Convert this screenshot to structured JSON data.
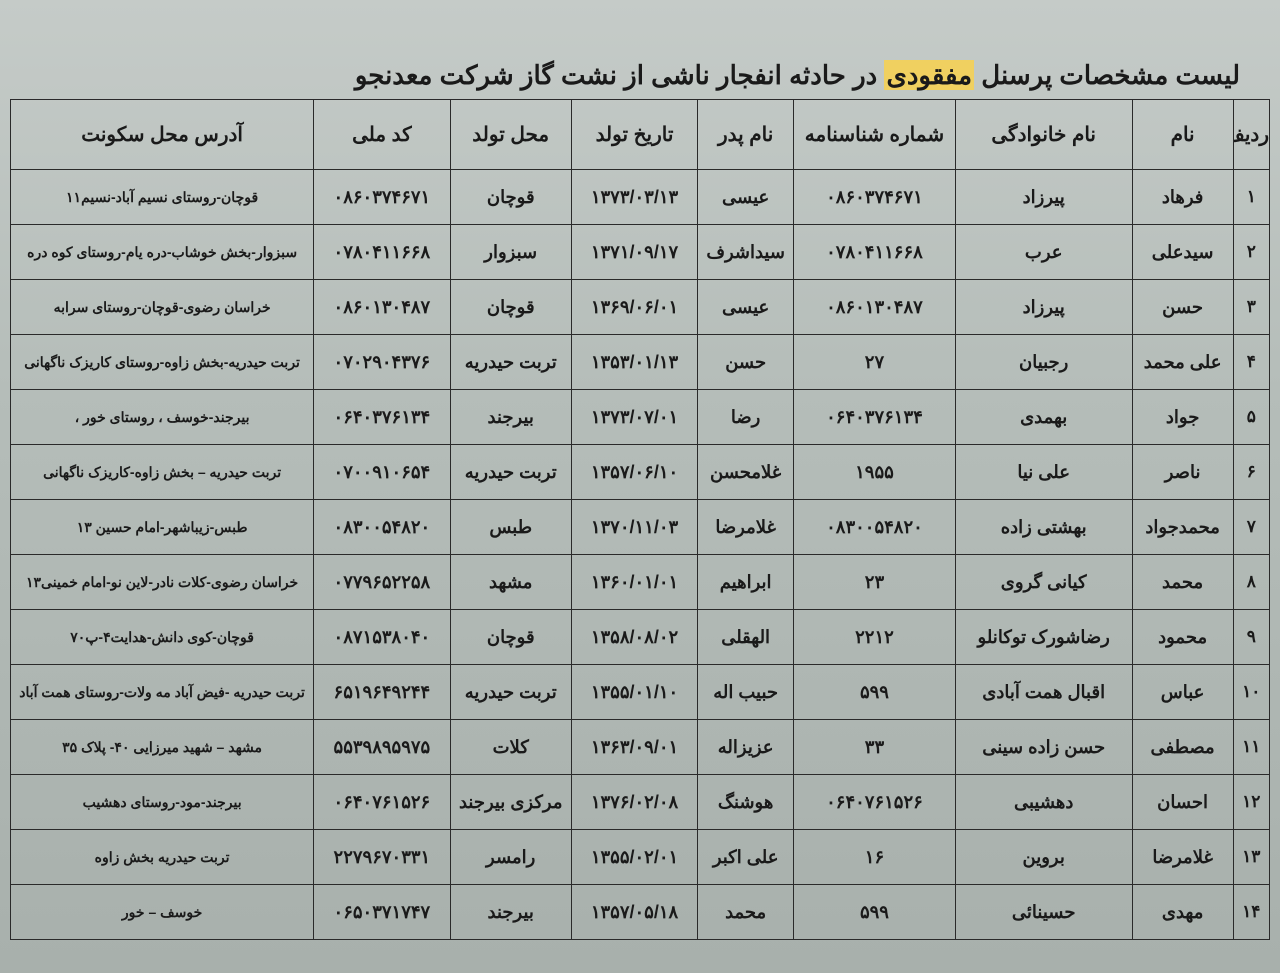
{
  "title_prefix": "لیست مشخصات پرسنل",
  "title_highlight": "مفقودی",
  "title_suffix": "در حادثه انفجار ناشی از نشت گاز شرکت معدنجو",
  "headers": {
    "row": "ردیف",
    "name": "نام",
    "lname": "نام خانوادگی",
    "id": "شماره شناسنامه",
    "father": "نام پدر",
    "dob": "تاریخ تولد",
    "pob": "محل تولد",
    "nid": "کد ملی",
    "addr": "آدرس محل سکونت"
  },
  "rows": [
    {
      "n": "۱",
      "name": "فرهاد",
      "lname": "پیرزاد",
      "id": "۰۸۶۰۳۷۴۶۷۱",
      "father": "عیسی",
      "dob": "۱۳۷۳/۰۳/۱۳",
      "pob": "قوچان",
      "nid": "۰۸۶۰۳۷۴۶۷۱",
      "addr": "قوچان-روستای نسیم آباد-نسیم۱۱"
    },
    {
      "n": "۲",
      "name": "سیدعلی",
      "lname": "عرب",
      "id": "۰۷۸۰۴۱۱۶۶۸",
      "father": "سیداشرف",
      "dob": "۱۳۷۱/۰۹/۱۷",
      "pob": "سبزوار",
      "nid": "۰۷۸۰۴۱۱۶۶۸",
      "addr": "سبزوار-بخش خوشاب-دره یام-روستای کوه دره"
    },
    {
      "n": "۳",
      "name": "حسن",
      "lname": "پیرزاد",
      "id": "۰۸۶۰۱۳۰۴۸۷",
      "father": "عیسی",
      "dob": "۱۳۶۹/۰۶/۰۱",
      "pob": "قوچان",
      "nid": "۰۸۶۰۱۳۰۴۸۷",
      "addr": "خراسان رضوی-قوچان-روستای سرابه"
    },
    {
      "n": "۴",
      "name": "علی محمد",
      "lname": "رجبیان",
      "id": "۲۷",
      "father": "حسن",
      "dob": "۱۳۵۳/۰۱/۱۳",
      "pob": "تربت حیدریه",
      "nid": "۰۷۰۲۹۰۴۳۷۶",
      "addr": "تربت حیدریه-بخش زاوه-روستای کاریزک ناگهانی"
    },
    {
      "n": "۵",
      "name": "جواد",
      "lname": "بهمدی",
      "id": "۰۶۴۰۳۷۶۱۳۴",
      "father": "رضا",
      "dob": "۱۳۷۳/۰۷/۰۱",
      "pob": "بیرجند",
      "nid": "۰۶۴۰۳۷۶۱۳۴",
      "addr": "بیرجند-خوسف ، روستای خور ،"
    },
    {
      "n": "۶",
      "name": "ناصر",
      "lname": "علی نیا",
      "id": "۱۹۵۵",
      "father": "غلامحسن",
      "dob": "۱۳۵۷/۰۶/۱۰",
      "pob": "تربت حیدریه",
      "nid": "۰۷۰۰۹۱۰۶۵۴",
      "addr": "تربت حیدریه – بخش زاوه-کاریزک ناگهانی"
    },
    {
      "n": "۷",
      "name": "محمدجواد",
      "lname": "بهشتی زاده",
      "id": "۰۸۳۰۰۵۴۸۲۰",
      "father": "غلامرضا",
      "dob": "۱۳۷۰/۱۱/۰۳",
      "pob": "طبس",
      "nid": "۰۸۳۰۰۵۴۸۲۰",
      "addr": "طبس-زیباشهر-امام حسین ۱۳"
    },
    {
      "n": "۸",
      "name": "محمد",
      "lname": "کیانی گروی",
      "id": "۲۳",
      "father": "ابراهیم",
      "dob": "۱۳۶۰/۰۱/۰۱",
      "pob": "مشهد",
      "nid": "۰۷۷۹۶۵۲۲۵۸",
      "addr": "خراسان رضوی-کلات نادر-لاین نو-امام خمینی۱۳"
    },
    {
      "n": "۹",
      "name": "محمود",
      "lname": "رضاشورک توکانلو",
      "id": "۲۲۱۲",
      "father": "الهقلی",
      "dob": "۱۳۵۸/۰۸/۰۲",
      "pob": "قوچان",
      "nid": "۰۸۷۱۵۳۸۰۴۰",
      "addr": "قوچان-کوی دانش-هدایت۴-پ۷۰"
    },
    {
      "n": "۱۰",
      "name": "عباس",
      "lname": "اقبال همت آبادی",
      "id": "۵۹۹",
      "father": "حبیب اله",
      "dob": "۱۳۵۵/۰۱/۱۰",
      "pob": "تربت حیدریه",
      "nid": "۶۵۱۹۶۴۹۲۴۴",
      "addr": "تربت حیدریه -فیض آباد مه ولات-روستای همت آباد"
    },
    {
      "n": "۱۱",
      "name": "مصطفی",
      "lname": "حسن زاده سینی",
      "id": "۳۳",
      "father": "عزیزاله",
      "dob": "۱۳۶۳/۰۹/۰۱",
      "pob": "کلات",
      "nid": "۵۵۳۹۸۹۵۹۷۵",
      "addr": "مشهد – شهید میرزایی ۴۰- پلاک ۳۵"
    },
    {
      "n": "۱۲",
      "name": "احسان",
      "lname": "دهشیبی",
      "id": "۰۶۴۰۷۶۱۵۲۶",
      "father": "هوشنگ",
      "dob": "۱۳۷۶/۰۲/۰۸",
      "pob": "مرکزی بیرجند",
      "nid": "۰۶۴۰۷۶۱۵۲۶",
      "addr": "بیرجند-مود-روستای دهشیب"
    },
    {
      "n": "۱۳",
      "name": "غلامرضا",
      "lname": "بروین",
      "id": "۱۶",
      "father": "علی اکبر",
      "dob": "۱۳۵۵/۰۲/۰۱",
      "pob": "رامسر",
      "nid": "۲۲۷۹۶۷۰۳۳۱",
      "addr": "تربت حیدریه بخش زاوه"
    },
    {
      "n": "۱۴",
      "name": "مهدی",
      "lname": "حسینائی",
      "id": "۵۹۹",
      "father": "محمد",
      "dob": "۱۳۵۷/۰۵/۱۸",
      "pob": "بیرجند",
      "nid": "۰۶۵۰۳۷۱۷۴۷",
      "addr": "خوسف – خور"
    }
  ]
}
